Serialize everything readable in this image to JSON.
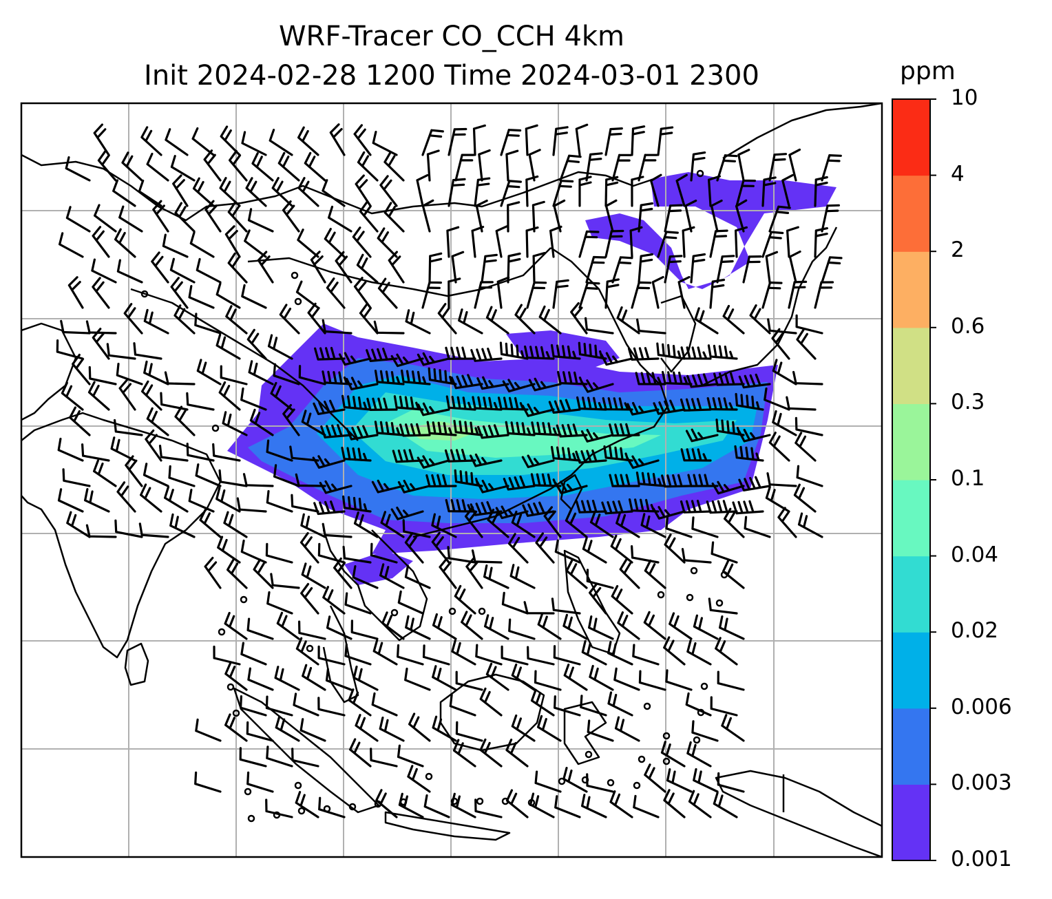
{
  "title": {
    "line1": "WRF-Tracer CO_CCH 4km",
    "line2": "Init 2024-02-28 1200 Time 2024-03-01 2300"
  },
  "colorbar": {
    "unit": "ppm",
    "levels": [
      "0.001",
      "0.003",
      "0.006",
      "0.02",
      "0.04",
      "0.1",
      "0.3",
      "0.6",
      "2",
      "4",
      "10"
    ],
    "colors": [
      "#6432f5",
      "#3476f0",
      "#00b0e8",
      "#32dcd2",
      "#68f8c0",
      "#9af59a",
      "#d0e085",
      "#fdaf62",
      "#fd6e38",
      "#fb2c15"
    ]
  },
  "map": {
    "gridlines": true,
    "gridline_color": "#b0b0b0",
    "coastline_color": "#000000",
    "wind_barb_color": "#000000"
  }
}
